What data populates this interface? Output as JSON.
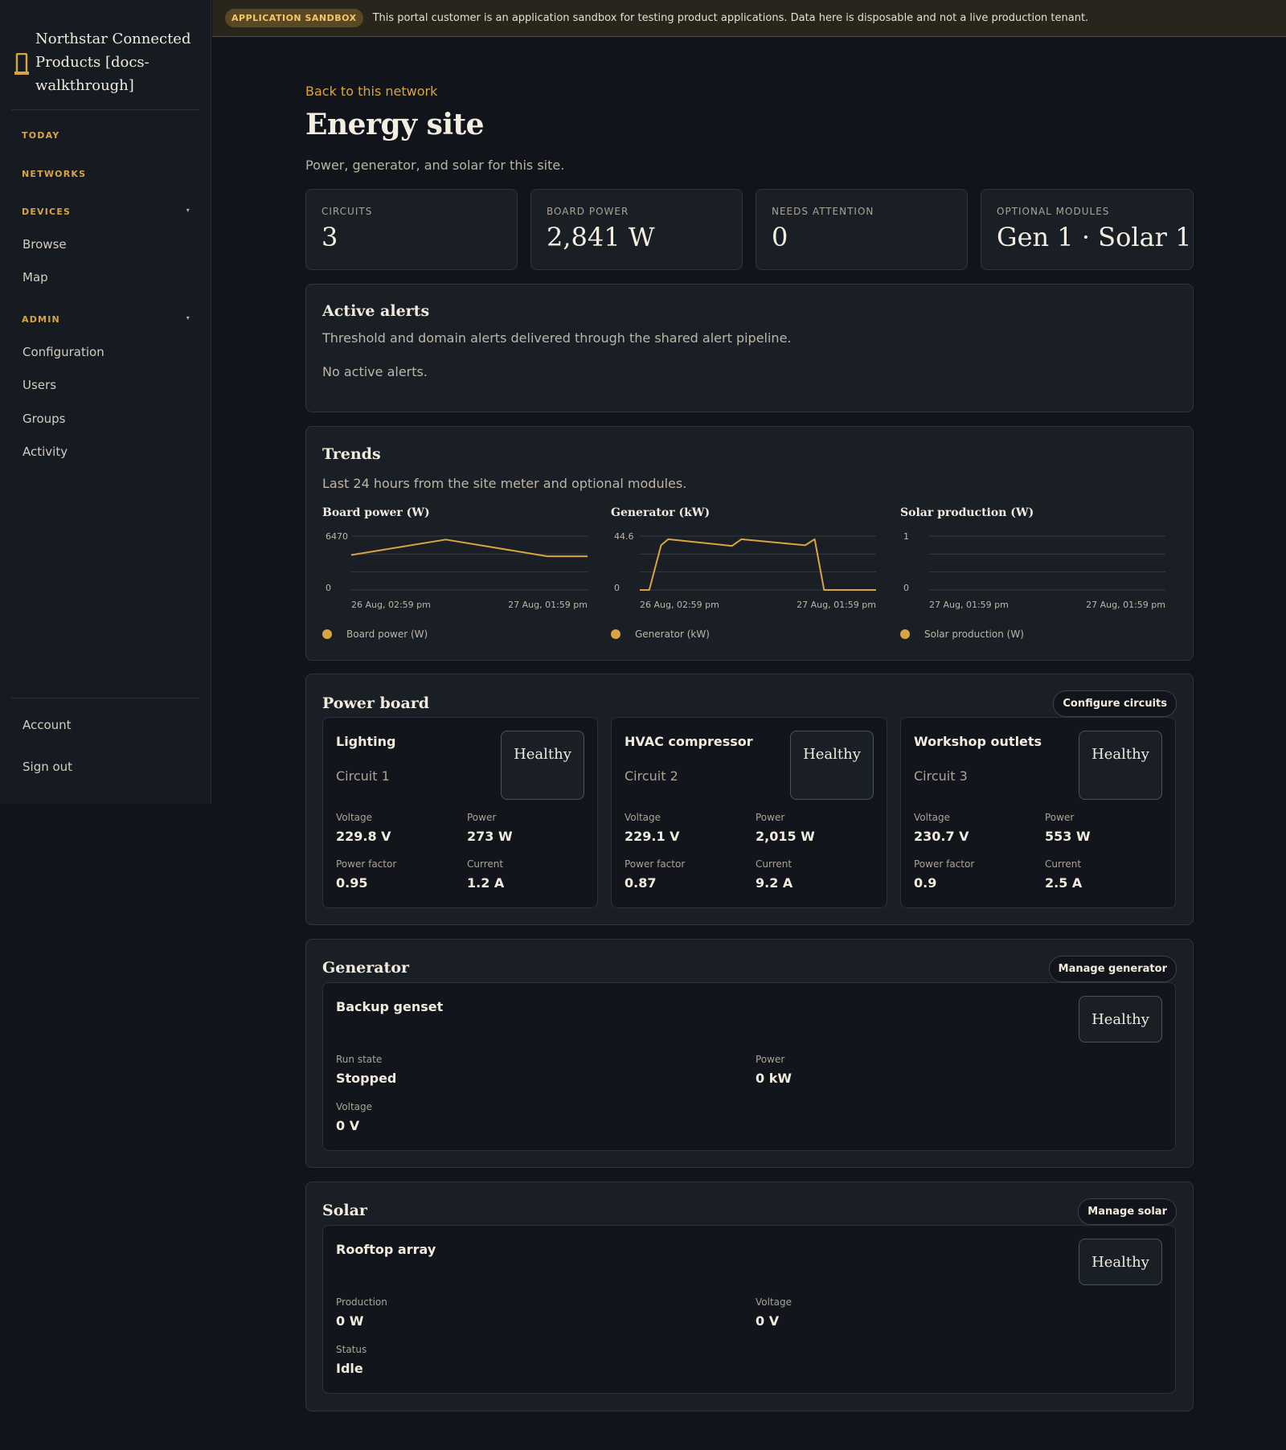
{
  "sidebar": {
    "brand": "Northstar Connected Products [docs-walkthrough]",
    "sections": {
      "today": "TODAY",
      "networks": "NETWORKS",
      "devices": "DEVICES",
      "admin": "ADMIN"
    },
    "devices_items": [
      "Browse",
      "Map"
    ],
    "admin_items": [
      "Configuration",
      "Users",
      "Groups",
      "Activity"
    ],
    "account": "Account",
    "signout": "Sign out"
  },
  "banner": {
    "pill": "APPLICATION SANDBOX",
    "text": "This portal customer is an application sandbox for testing product applications. Data here is disposable and not a live production tenant."
  },
  "page": {
    "back": "Back to this network",
    "title": "Energy site",
    "subtitle": "Power, generator, and solar for this site."
  },
  "kpis": [
    {
      "label": "CIRCUITS",
      "value": "3"
    },
    {
      "label": "BOARD POWER",
      "value": "2,841 W"
    },
    {
      "label": "NEEDS ATTENTION",
      "value": "0"
    },
    {
      "label": "OPTIONAL MODULES",
      "value": "Gen 1 · Solar 1"
    }
  ],
  "alerts": {
    "title": "Active alerts",
    "desc": "Threshold and domain alerts delivered through the shared alert pipeline.",
    "empty": "No active alerts."
  },
  "trends": {
    "title": "Trends",
    "desc": "Last 24 hours from the site meter and optional modules."
  },
  "accent": "#d9a441",
  "chart_data": [
    {
      "type": "line",
      "title": "Board power (W)",
      "legend": "Board power (W)",
      "ylim": [
        0,
        6470
      ],
      "yticks": [
        "6470",
        "0"
      ],
      "xticks": [
        "26 Aug, 02:59 pm",
        "27 Aug, 01:59 pm"
      ],
      "x": [
        0,
        0.4,
        0.83,
        1.0
      ],
      "y": [
        4200,
        6050,
        4050,
        4050
      ]
    },
    {
      "type": "line",
      "title": "Generator (kW)",
      "legend": "Generator (kW)",
      "ylim": [
        0,
        44.6
      ],
      "yticks": [
        "44.6",
        "0"
      ],
      "xticks": [
        "26 Aug, 02:59 pm",
        "27 Aug, 01:59 pm"
      ],
      "x": [
        0,
        0.04,
        0.09,
        0.12,
        0.39,
        0.43,
        0.7,
        0.74,
        0.78,
        1.0
      ],
      "y": [
        0,
        0,
        37,
        42,
        36.5,
        42,
        37,
        42,
        0,
        0
      ]
    },
    {
      "type": "line",
      "title": "Solar production (W)",
      "legend": "Solar production (W)",
      "ylim": [
        0,
        1
      ],
      "yticks": [
        "1",
        "0"
      ],
      "xticks": [
        "27 Aug, 01:59 pm",
        "27 Aug, 01:59 pm"
      ],
      "x": [],
      "y": []
    }
  ],
  "powerboard": {
    "title": "Power board",
    "button": "Configure circuits",
    "circuits": [
      {
        "name": "Lighting",
        "circuit": "Circuit 1",
        "status": "Healthy",
        "voltage_label": "Voltage",
        "voltage": "229.8 V",
        "power_label": "Power",
        "power": "273 W",
        "pf_label": "Power factor",
        "pf": "0.95",
        "current_label": "Current",
        "current": "1.2 A"
      },
      {
        "name": "HVAC compressor",
        "circuit": "Circuit 2",
        "status": "Healthy",
        "voltage_label": "Voltage",
        "voltage": "229.1 V",
        "power_label": "Power",
        "power": "2,015 W",
        "pf_label": "Power factor",
        "pf": "0.87",
        "current_label": "Current",
        "current": "9.2 A"
      },
      {
        "name": "Workshop outlets",
        "circuit": "Circuit 3",
        "status": "Healthy",
        "voltage_label": "Voltage",
        "voltage": "230.7 V",
        "power_label": "Power",
        "power": "553 W",
        "pf_label": "Power factor",
        "pf": "0.9",
        "current_label": "Current",
        "current": "2.5 A"
      }
    ]
  },
  "generator": {
    "title": "Generator",
    "button": "Manage generator",
    "name": "Backup genset",
    "status": "Healthy",
    "run_label": "Run state",
    "run": "Stopped",
    "power_label": "Power",
    "power": "0 kW",
    "voltage_label": "Voltage",
    "voltage": "0 V"
  },
  "solar": {
    "title": "Solar",
    "button": "Manage solar",
    "name": "Rooftop array",
    "status": "Healthy",
    "production_label": "Production",
    "production": "0 W",
    "voltage_label": "Voltage",
    "voltage": "0 V",
    "status_label": "Status",
    "status_value": "Idle"
  }
}
